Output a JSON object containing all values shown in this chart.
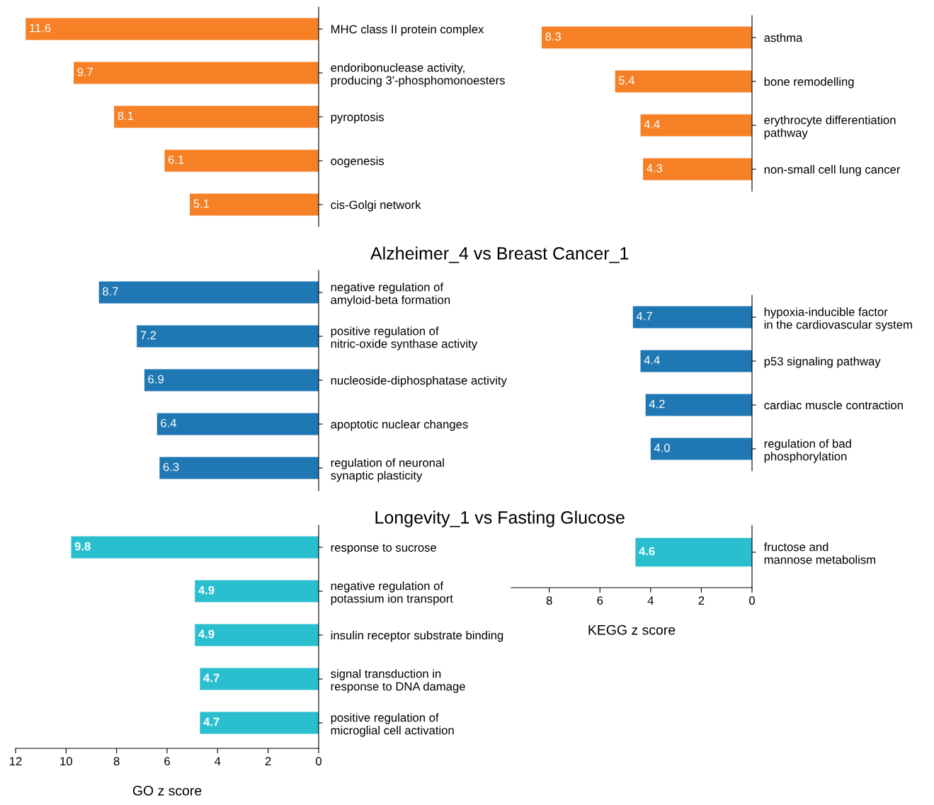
{
  "chart_data": [
    {
      "type": "bar",
      "orientation": "horizontal",
      "categories": [
        "MHC class II protein complex",
        "endoribonuclease activity,\nproducing 3'-phosphomonoesters",
        "pyroptosis",
        "oogenesis",
        "cis-Golgi network"
      ],
      "values": [
        11.6,
        9.7,
        8.1,
        6.1,
        5.1
      ],
      "color": "#f58025",
      "data_labels": true,
      "xlim": [
        12,
        0
      ],
      "xticks": [
        12,
        10,
        8,
        6,
        4,
        2,
        0
      ],
      "tick_labels": "y"
    },
    {
      "type": "bar",
      "orientation": "horizontal",
      "categories": [
        "asthma",
        "bone remodelling",
        "erythrocyte differentiation\npathway",
        "non-small cell lung cancer"
      ],
      "values": [
        8.3,
        5.4,
        4.4,
        4.3
      ],
      "color": "#f58025",
      "data_labels": true,
      "tick_labels": "y"
    },
    {
      "type": "bar",
      "orientation": "horizontal",
      "title": "Alzheimer_4 vs Breast Cancer_1",
      "categories": [
        "negative regulation of\namyloid-beta formation",
        "positive regulation of\nnitric-oxide synthase activity",
        "nucleoside-diphosphatase activity",
        "apoptotic nuclear changes",
        "regulation of neuronal\nsynaptic plasticity"
      ],
      "values": [
        8.7,
        7.2,
        6.9,
        6.4,
        6.3
      ],
      "color": "#1f77b4",
      "data_labels": true,
      "xlim": [
        12,
        0
      ],
      "xticks": [
        12,
        10,
        8,
        6,
        4,
        2,
        0
      ],
      "tick_labels": "y"
    },
    {
      "type": "bar",
      "orientation": "horizontal",
      "categories": [
        "hypoxia-inducible factor\nin the cardiovascular system",
        "p53 signaling pathway",
        "cardiac muscle contraction",
        "regulation of bad\nphosphorylation"
      ],
      "values": [
        4.7,
        4.4,
        4.2,
        4.0
      ],
      "value_labels": [
        "4.7",
        "4.4",
        "4.2",
        "4.0"
      ],
      "color": "#1f77b4",
      "tick_labels": "y"
    },
    {
      "type": "bar",
      "orientation": "horizontal",
      "title": "Longevity_1 vs Fasting Glucose",
      "xlabel": "GO z score",
      "categories": [
        "response to sucrose",
        "negative regulation of\npotassium ion transport",
        "insulin receptor substrate binding",
        "signal transduction in\nresponse to DNA damage",
        "positive regulation of\nmicroglial cell activation"
      ],
      "values": [
        9.8,
        4.9,
        4.9,
        4.7,
        4.7
      ],
      "color": "#29bfcf",
      "data_labels": true,
      "xlim": [
        12,
        0
      ],
      "xticks": [
        12,
        10,
        8,
        6,
        4,
        2,
        0
      ]
    },
    {
      "type": "bar",
      "orientation": "horizontal",
      "xlabel": "KEGG z score",
      "categories": [
        "fructose and\nmannose metabolism"
      ],
      "values": [
        4.6
      ],
      "color": "#29bfcf",
      "data_labels": true,
      "xlim": [
        9.5,
        0
      ],
      "xticks": [
        8,
        6,
        4,
        2,
        0
      ]
    }
  ]
}
